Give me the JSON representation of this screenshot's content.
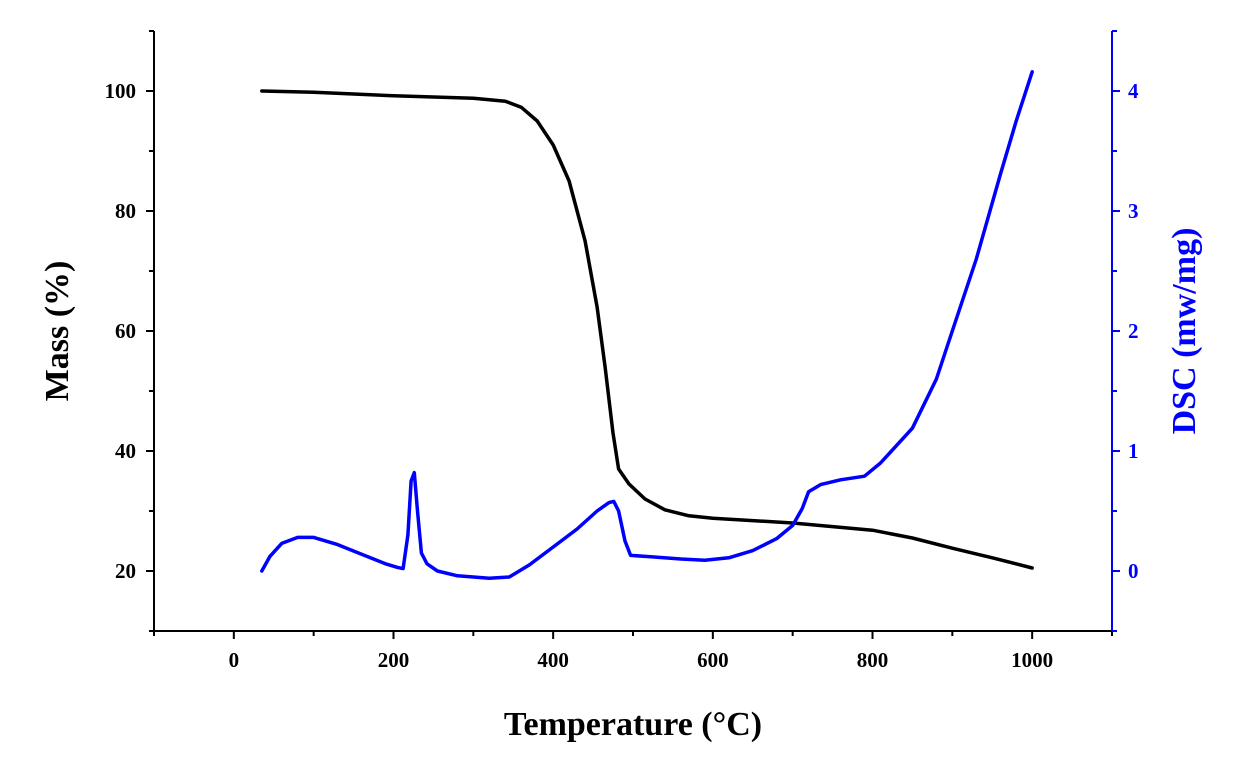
{
  "chart_data": {
    "type": "line",
    "xlabel": "Temperature (°C)",
    "ylabel_left": "Mass (%)",
    "ylabel_right": "DSC (mw/mg)",
    "xlim": [
      -100,
      1100
    ],
    "ylim_left": [
      10,
      110
    ],
    "ylim_right": [
      -0.5,
      4.5
    ],
    "x_ticks": [
      0,
      200,
      400,
      600,
      800,
      1000
    ],
    "y_left_ticks": [
      20,
      40,
      60,
      80,
      100
    ],
    "y_right_ticks": [
      0,
      1,
      2,
      3,
      4
    ],
    "grid": false,
    "colors": {
      "mass": "#000000",
      "dsc": "#0000ff"
    },
    "series": [
      {
        "name": "Mass",
        "axis": "left",
        "color": "#000000",
        "x": [
          35,
          100,
          200,
          300,
          340,
          360,
          380,
          400,
          420,
          440,
          455,
          465,
          475,
          482,
          495,
          515,
          540,
          570,
          600,
          700,
          800,
          850,
          900,
          950,
          1000
        ],
        "y": [
          100,
          99.8,
          99.2,
          98.8,
          98.3,
          97.3,
          95,
          91,
          85,
          75,
          64,
          54,
          43,
          37,
          34.5,
          32,
          30.2,
          29.2,
          28.8,
          28,
          26.8,
          25.5,
          23.8,
          22.2,
          20.5
        ]
      },
      {
        "name": "DSC",
        "axis": "right",
        "color": "#0000ff",
        "x": [
          35,
          45,
          60,
          80,
          100,
          130,
          160,
          190,
          205,
          212,
          218,
          222,
          226,
          230,
          235,
          242,
          255,
          280,
          320,
          345,
          370,
          400,
          430,
          455,
          470,
          476,
          482,
          490,
          497,
          520,
          560,
          590,
          620,
          650,
          680,
          700,
          712,
          720,
          735,
          760,
          790,
          810,
          850,
          880,
          900,
          930,
          960,
          980,
          1000
        ],
        "y": [
          0,
          0.12,
          0.23,
          0.28,
          0.28,
          0.22,
          0.14,
          0.06,
          0.03,
          0.02,
          0.3,
          0.75,
          0.82,
          0.5,
          0.15,
          0.06,
          0.0,
          -0.04,
          -0.06,
          -0.05,
          0.05,
          0.2,
          0.35,
          0.5,
          0.57,
          0.58,
          0.5,
          0.25,
          0.13,
          0.12,
          0.1,
          0.09,
          0.11,
          0.17,
          0.27,
          0.38,
          0.52,
          0.66,
          0.72,
          0.76,
          0.79,
          0.9,
          1.19,
          1.6,
          2.0,
          2.6,
          3.3,
          3.75,
          4.16
        ]
      }
    ]
  }
}
